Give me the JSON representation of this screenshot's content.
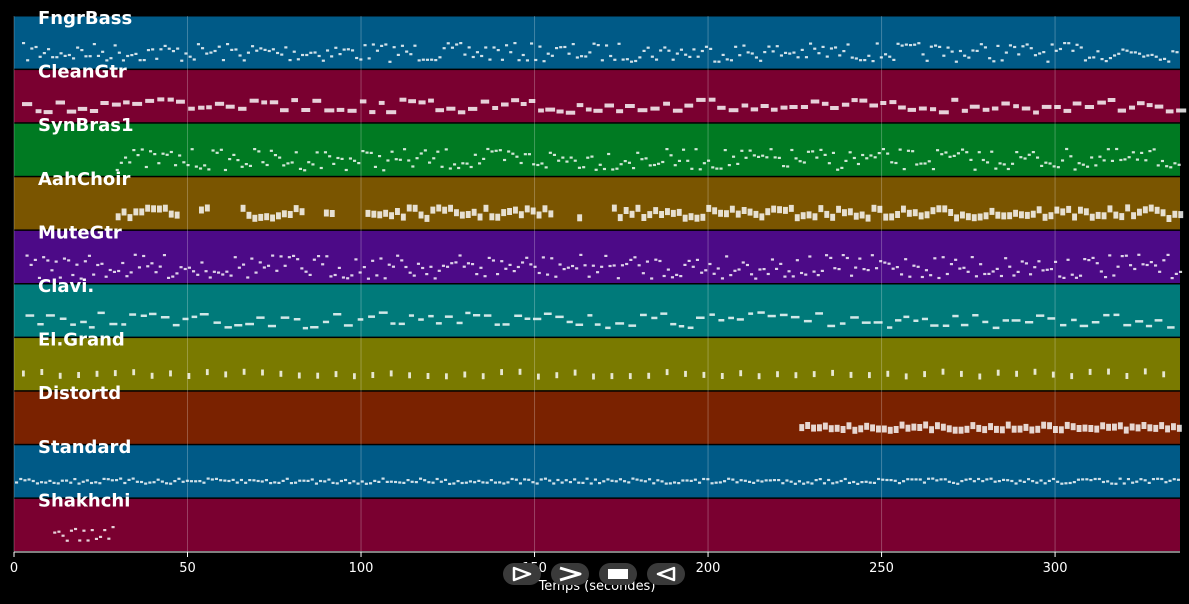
{
  "chart_data": {
    "type": "piano-roll",
    "title": "",
    "xlabel": "Temps (secondes)",
    "ylabel": "",
    "xlim": [
      0,
      336
    ],
    "xticks": [
      0,
      50,
      100,
      150,
      200,
      250,
      300
    ],
    "xtick_labels": [
      "0",
      "50",
      "100",
      "150",
      "200",
      "250",
      "300"
    ],
    "grid": true,
    "tracks": [
      {
        "name": "FngrBass",
        "color": "#005a87",
        "active": [
          [
            2,
            336
          ]
        ],
        "style": "dense-line",
        "pitch_var": 0.35
      },
      {
        "name": "CleanGtr",
        "color": "#7a0030",
        "active": [
          [
            2,
            336
          ]
        ],
        "style": "blocks",
        "pitch_var": 0.25
      },
      {
        "name": "SynBras1",
        "color": "#007a22",
        "active": [
          [
            29,
            336
          ]
        ],
        "style": "wavy",
        "pitch_var": 0.4
      },
      {
        "name": "AahChoir",
        "color": "#7a5500",
        "active": [
          [
            29,
            47
          ],
          [
            53,
            56
          ],
          [
            65,
            83
          ],
          [
            89,
            92
          ],
          [
            101,
            155
          ],
          [
            162,
            164
          ],
          [
            172,
            336
          ]
        ],
        "style": "chords",
        "pitch_var": 0.2
      },
      {
        "name": "MuteGtr",
        "color": "#4c0a87",
        "active": [
          [
            3,
            336
          ]
        ],
        "style": "wavy",
        "pitch_var": 0.45
      },
      {
        "name": "Clavi.",
        "color": "#007a7a",
        "active": [
          [
            3,
            336
          ]
        ],
        "style": "dashes",
        "pitch_var": 0.3
      },
      {
        "name": "El.Grand",
        "color": "#7a7a00",
        "active": [
          [
            2,
            336
          ]
        ],
        "style": "sparse",
        "pitch_var": 0.1
      },
      {
        "name": "Distortd",
        "color": "#7a2200",
        "active": [
          [
            226,
            336
          ]
        ],
        "style": "chords",
        "pitch_var": 0.1
      },
      {
        "name": "Standard",
        "color": "#005a87",
        "active": [
          [
            0,
            336
          ]
        ],
        "style": "dense-line",
        "pitch_var": 0.1
      },
      {
        "name": "Shakhchi",
        "color": "#7a0030",
        "active": [
          [
            11,
            29
          ]
        ],
        "style": "wavy",
        "pitch_var": 0.3
      }
    ]
  },
  "controls": [
    {
      "name": "play",
      "glyph": "play-outline-icon"
    },
    {
      "name": "forward",
      "glyph": "chevron-right-icon"
    },
    {
      "name": "stop",
      "glyph": "stop-icon"
    },
    {
      "name": "back",
      "glyph": "triangle-left-icon"
    }
  ]
}
